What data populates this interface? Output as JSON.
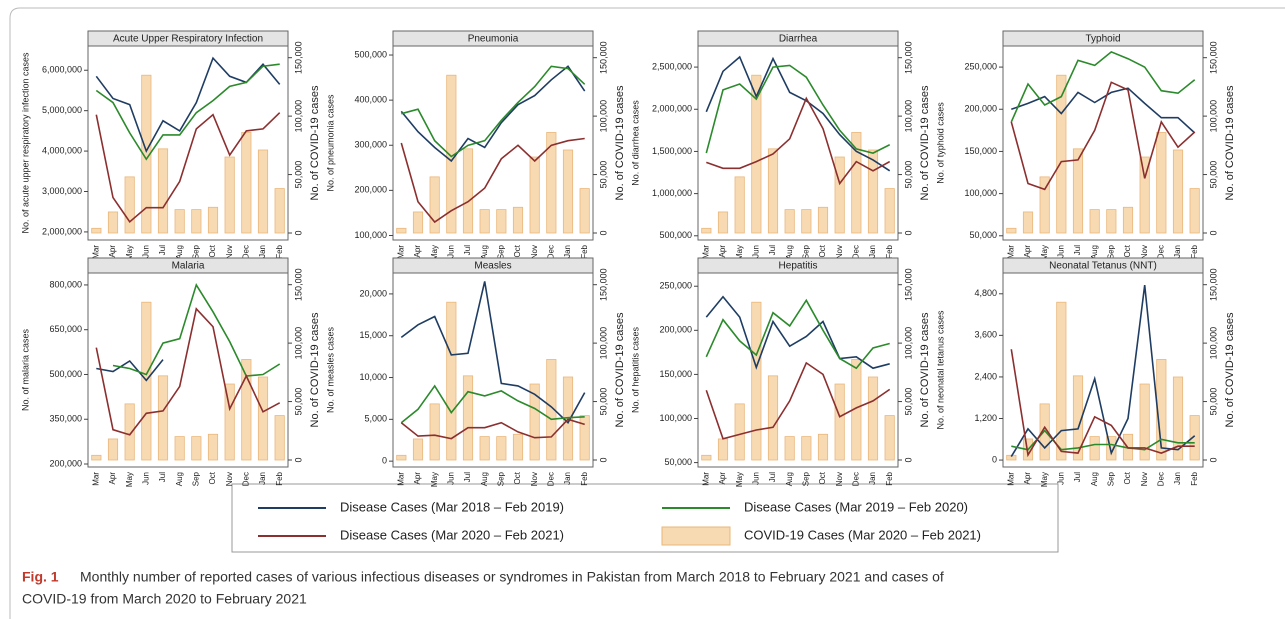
{
  "chart_data": [
    {
      "type": "line",
      "title": "Acute Upper Respiratory Infection",
      "ylabel": "No. of acute upper respiratory infection cases",
      "ylim": [
        1800000,
        6600000
      ],
      "yticks": [
        {
          "value": 2000000,
          "label": "2,000,000"
        },
        {
          "value": 3000000,
          "label": "3,000,000"
        },
        {
          "value": 4000000,
          "label": "4,000,000"
        },
        {
          "value": 5000000,
          "label": "5,000,000"
        },
        {
          "value": 6000000,
          "label": "6,000,000"
        }
      ],
      "series": [
        {
          "values": [
            5850000,
            5300000,
            5150000,
            4000000,
            4750000,
            4500000,
            5200000,
            6300000,
            5850000,
            5700000,
            6150000,
            5650000
          ]
        },
        {
          "values": [
            5500000,
            5200000,
            4450000,
            3800000,
            4400000,
            4400000,
            4950000,
            5250000,
            5600000,
            5700000,
            6100000,
            6150000
          ]
        },
        {
          "values": [
            4900000,
            2850000,
            2250000,
            2600000,
            2600000,
            3250000,
            4550000,
            4900000,
            3900000,
            4500000,
            4550000,
            4950000
          ]
        }
      ]
    },
    {
      "type": "line",
      "title": "Pneumonia",
      "ylabel": "No. of pneumonia cases",
      "ylim": [
        90000,
        520000
      ],
      "yticks": [
        {
          "value": 100000,
          "label": "100,000"
        },
        {
          "value": 200000,
          "label": "200,000"
        },
        {
          "value": 300000,
          "label": "300,000"
        },
        {
          "value": 400000,
          "label": "400,000"
        },
        {
          "value": 500000,
          "label": "500,000"
        }
      ],
      "series": [
        {
          "values": [
            375000,
            330000,
            295000,
            265000,
            315000,
            295000,
            350000,
            390000,
            410000,
            445000,
            475000,
            420000
          ]
        },
        {
          "values": [
            370000,
            380000,
            310000,
            275000,
            300000,
            310000,
            355000,
            395000,
            430000,
            475000,
            470000,
            435000
          ]
        },
        {
          "values": [
            305000,
            175000,
            130000,
            155000,
            175000,
            205000,
            270000,
            300000,
            265000,
            300000,
            310000,
            315000
          ]
        }
      ]
    },
    {
      "type": "line",
      "title": "Diarrhea",
      "ylabel": "No. of diarrhea cases",
      "ylim": [
        450000,
        2750000
      ],
      "yticks": [
        {
          "value": 500000,
          "label": "500,000"
        },
        {
          "value": 1000000,
          "label": "1,000,000"
        },
        {
          "value": 1500000,
          "label": "1,500,000"
        },
        {
          "value": 2000000,
          "label": "2,000,000"
        },
        {
          "value": 2500000,
          "label": "2,500,000"
        }
      ],
      "series": [
        {
          "values": [
            1970000,
            2450000,
            2620000,
            2150000,
            2600000,
            2200000,
            2100000,
            1950000,
            1700000,
            1500000,
            1400000,
            1270000
          ]
        },
        {
          "values": [
            1480000,
            2230000,
            2300000,
            2120000,
            2500000,
            2520000,
            2380000,
            2050000,
            1750000,
            1530000,
            1480000,
            1580000
          ]
        },
        {
          "values": [
            1370000,
            1300000,
            1300000,
            1380000,
            1470000,
            1650000,
            2130000,
            1770000,
            1120000,
            1380000,
            1270000,
            1380000
          ]
        }
      ]
    },
    {
      "type": "line",
      "title": "Typhoid",
      "ylabel": "No. of typhoid cases",
      "ylim": [
        45000,
        275000
      ],
      "yticks": [
        {
          "value": 50000,
          "label": "50,000"
        },
        {
          "value": 100000,
          "label": "100,000"
        },
        {
          "value": 150000,
          "label": "150,000"
        },
        {
          "value": 200000,
          "label": "200,000"
        },
        {
          "value": 250000,
          "label": "250,000"
        }
      ],
      "series": [
        {
          "values": [
            200000,
            207000,
            215000,
            195000,
            220000,
            208000,
            220000,
            225000,
            207000,
            190000,
            190000,
            172000
          ]
        },
        {
          "values": [
            185000,
            230000,
            205000,
            215000,
            258000,
            252000,
            268000,
            260000,
            250000,
            222000,
            219000,
            235000
          ]
        },
        {
          "values": [
            185000,
            112000,
            105000,
            138000,
            140000,
            175000,
            232000,
            223000,
            118000,
            185000,
            155000,
            173000
          ]
        }
      ]
    },
    {
      "type": "line",
      "title": "Malaria",
      "ylabel": "No. of malaria cases",
      "ylim": [
        190000,
        840000
      ],
      "yticks": [
        {
          "value": 200000,
          "label": "200,000"
        },
        {
          "value": 350000,
          "label": "350,000"
        },
        {
          "value": 500000,
          "label": "500,000"
        },
        {
          "value": 650000,
          "label": "650,000"
        },
        {
          "value": 800000,
          "label": "800,000"
        }
      ],
      "series": [
        {
          "values": [
            520000,
            510000,
            545000,
            480000,
            550000,
            null,
            null,
            null,
            null,
            null,
            null,
            null
          ]
        },
        {
          "values": [
            null,
            530000,
            520000,
            500000,
            605000,
            620000,
            800000,
            710000,
            610000,
            495000,
            500000,
            535000
          ]
        },
        {
          "values": [
            590000,
            315000,
            298000,
            370000,
            378000,
            460000,
            720000,
            660000,
            385000,
            495000,
            375000,
            405000
          ]
        }
      ]
    },
    {
      "type": "line",
      "title": "Measles",
      "ylabel": "No. of measles cases",
      "ylim": [
        -700,
        22500
      ],
      "yticks": [
        0,
        {
          "value": 5000,
          "label": "5,000"
        },
        {
          "value": 10000,
          "label": "10,000"
        },
        {
          "value": 15000,
          "label": "15,000"
        },
        {
          "value": 20000,
          "label": "20,000"
        }
      ],
      "series": [
        {
          "values": [
            14800,
            16300,
            17300,
            12700,
            12900,
            21500,
            9300,
            9000,
            8000,
            6500,
            4600,
            8200
          ]
        },
        {
          "values": [
            4600,
            6200,
            9000,
            5800,
            8300,
            7800,
            8400,
            7200,
            6300,
            5000,
            5200,
            5300
          ]
        },
        {
          "values": [
            4600,
            3000,
            3100,
            2700,
            4000,
            4000,
            4600,
            3500,
            2800,
            2900,
            5000,
            4400
          ]
        }
      ]
    },
    {
      "type": "line",
      "title": "Hepatitis",
      "ylabel": "No. of hepatitis cases",
      "ylim": [
        45000,
        265000
      ],
      "yticks": [
        {
          "value": 50000,
          "label": "50,000"
        },
        {
          "value": 100000,
          "label": "100,000"
        },
        {
          "value": 150000,
          "label": "150,000"
        },
        {
          "value": 200000,
          "label": "200,000"
        },
        {
          "value": 250000,
          "label": "250,000"
        }
      ],
      "series": [
        {
          "values": [
            215000,
            238000,
            215000,
            158000,
            210000,
            182000,
            193000,
            210000,
            168000,
            170000,
            157000,
            162000
          ]
        },
        {
          "values": [
            170000,
            212000,
            188000,
            172000,
            220000,
            205000,
            234000,
            200000,
            168000,
            157000,
            180000,
            185000
          ]
        },
        {
          "values": [
            132000,
            77000,
            82000,
            87000,
            90000,
            120000,
            163000,
            150000,
            102000,
            112000,
            120000,
            133000
          ]
        }
      ]
    },
    {
      "type": "line",
      "title": "Neonatal Tetanus (NNT)",
      "ylabel": "No. of neonatal tetanus cases",
      "ylim": [
        -200,
        5400
      ],
      "yticks": [
        0,
        {
          "value": 1200,
          "label": "1,200"
        },
        {
          "value": 2400,
          "label": "2,400"
        },
        {
          "value": 3600,
          "label": "3,600"
        },
        {
          "value": 4800,
          "label": "4,800"
        }
      ],
      "series": [
        {
          "values": [
            100,
            900,
            350,
            850,
            900,
            2350,
            200,
            1200,
            5050,
            350,
            300,
            700
          ]
        },
        {
          "values": [
            400,
            300,
            850,
            300,
            350,
            450,
            450,
            350,
            300,
            600,
            500,
            500
          ]
        },
        {
          "values": [
            3200,
            150,
            950,
            250,
            200,
            1250,
            1000,
            350,
            350,
            200,
            400,
            400
          ]
        }
      ]
    }
  ],
  "categories": [
    "Mar",
    "Apr",
    "May",
    "Jun",
    "Jul",
    "Aug",
    "Sep",
    "Oct",
    "Nov",
    "Dec",
    "Jan",
    "Feb"
  ],
  "covid_values": [
    4000,
    18000,
    48000,
    135000,
    72000,
    20000,
    20000,
    22000,
    65000,
    86000,
    71000,
    38000
  ],
  "y2label": "No. of COVID-19 cases",
  "y2lim": [
    -6000,
    160000
  ],
  "y2ticks": [
    0,
    {
      "value": 50000,
      "label": "50,000"
    },
    {
      "value": 100000,
      "label": "100,000"
    },
    {
      "value": 150000,
      "label": "150,000"
    }
  ],
  "legend": [
    {
      "name": "Disease Cases (Mar 2018 – Feb 2019)",
      "color": "#1f3d63"
    },
    {
      "name": "Disease Cases (Mar 2019 – Feb 2020)",
      "color": "#2b8a2b"
    },
    {
      "name": "Disease Cases (Mar 2020 – Feb 2021)",
      "color": "#8c2f2f"
    },
    {
      "name": "COVID-19 Cases (Mar 2020 –  Feb 2021)",
      "color": "#f8dab2"
    }
  ],
  "caption": {
    "label": "Fig. 1",
    "line1": "Monthly number of reported cases of various infectious diseases or syndromes in Pakistan from March 2018 to February 2021 and cases of",
    "line2": "COVID-19 from March 2020 to February 2021"
  }
}
